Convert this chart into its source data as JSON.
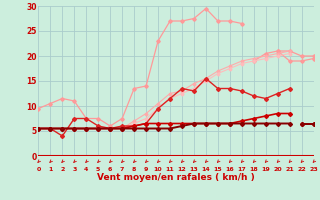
{
  "x": [
    0,
    1,
    2,
    3,
    4,
    5,
    6,
    7,
    8,
    9,
    10,
    11,
    12,
    13,
    14,
    15,
    16,
    17,
    18,
    19,
    20,
    21,
    22,
    23
  ],
  "series": [
    {
      "color": "#ff9999",
      "lw": 0.9,
      "marker": "D",
      "ms": 1.8,
      "values": [
        9.5,
        10.5,
        11.5,
        11.0,
        7.5,
        7.5,
        6.0,
        7.5,
        13.5,
        14.0,
        23.0,
        27.0,
        27.0,
        27.5,
        29.5,
        27.0,
        27.0,
        26.5,
        null,
        null,
        21.0,
        19.0,
        19.0,
        19.5
      ]
    },
    {
      "color": "#ff9999",
      "lw": 0.9,
      "marker": "D",
      "ms": 1.8,
      "values": [
        null,
        null,
        null,
        null,
        null,
        null,
        null,
        null,
        null,
        null,
        null,
        null,
        null,
        null,
        null,
        null,
        null,
        null,
        19.0,
        20.5,
        21.0,
        21.0,
        20.0,
        20.0
      ]
    },
    {
      "color": "#ffaaaa",
      "lw": 0.8,
      "marker": "D",
      "ms": 1.5,
      "values": [
        5.5,
        5.5,
        5.5,
        5.5,
        5.5,
        5.5,
        5.5,
        5.5,
        7.0,
        8.5,
        10.5,
        12.5,
        13.0,
        14.5,
        15.5,
        17.0,
        18.0,
        19.0,
        19.5,
        20.0,
        20.5,
        21.0,
        null,
        null
      ]
    },
    {
      "color": "#ffbbbb",
      "lw": 0.8,
      "marker": "D",
      "ms": 1.5,
      "values": [
        5.5,
        5.5,
        5.5,
        5.5,
        5.5,
        5.5,
        5.5,
        5.5,
        6.5,
        7.5,
        9.5,
        11.5,
        12.5,
        13.5,
        15.0,
        16.5,
        17.5,
        18.5,
        19.0,
        19.5,
        20.0,
        20.5,
        null,
        null
      ]
    },
    {
      "color": "#dd2222",
      "lw": 1.0,
      "marker": "D",
      "ms": 2.0,
      "values": [
        5.5,
        5.5,
        4.0,
        7.5,
        7.5,
        6.0,
        5.5,
        6.0,
        6.0,
        6.5,
        9.5,
        11.5,
        13.5,
        13.0,
        15.5,
        13.5,
        13.5,
        13.0,
        12.0,
        11.5,
        12.5,
        13.5,
        null,
        null
      ]
    },
    {
      "color": "#cc0000",
      "lw": 1.2,
      "marker": "D",
      "ms": 2.0,
      "values": [
        5.5,
        5.5,
        5.5,
        5.5,
        5.5,
        5.5,
        5.5,
        5.5,
        6.0,
        6.5,
        6.5,
        6.5,
        6.5,
        6.5,
        6.5,
        6.5,
        6.5,
        7.0,
        7.5,
        8.0,
        8.5,
        8.5,
        null,
        null
      ]
    },
    {
      "color": "#880000",
      "lw": 1.4,
      "marker": "D",
      "ms": 2.0,
      "values": [
        5.5,
        5.5,
        5.5,
        5.5,
        5.5,
        5.5,
        5.5,
        5.5,
        5.5,
        5.5,
        5.5,
        5.5,
        6.0,
        6.5,
        6.5,
        6.5,
        6.5,
        6.5,
        6.5,
        6.5,
        6.5,
        6.5,
        null,
        null
      ]
    },
    {
      "color": "#cc0000",
      "lw": 1.2,
      "marker": "D",
      "ms": 2.0,
      "values": [
        null,
        null,
        null,
        null,
        null,
        null,
        null,
        null,
        null,
        null,
        null,
        null,
        null,
        null,
        null,
        null,
        null,
        null,
        null,
        null,
        null,
        null,
        6.5,
        6.5
      ]
    },
    {
      "color": "#880000",
      "lw": 1.4,
      "marker": "D",
      "ms": 2.0,
      "values": [
        null,
        null,
        null,
        null,
        null,
        null,
        null,
        null,
        null,
        null,
        null,
        null,
        null,
        null,
        null,
        null,
        null,
        null,
        null,
        null,
        null,
        null,
        6.5,
        6.5
      ]
    }
  ],
  "xlabel": "Vent moyen/en rafales ( km/h )",
  "xlim": [
    0,
    23
  ],
  "ylim": [
    0,
    30
  ],
  "yticks": [
    0,
    5,
    10,
    15,
    20,
    25,
    30
  ],
  "xticks": [
    0,
    1,
    2,
    3,
    4,
    5,
    6,
    7,
    8,
    9,
    10,
    11,
    12,
    13,
    14,
    15,
    16,
    17,
    18,
    19,
    20,
    21,
    22,
    23
  ],
  "bg_color": "#cceedd",
  "grid_color": "#aacccc",
  "arrow_color": "#cc2222",
  "xlabel_color": "#cc0000",
  "tick_color": "#cc0000",
  "xaxis_line_color": "#cc0000"
}
